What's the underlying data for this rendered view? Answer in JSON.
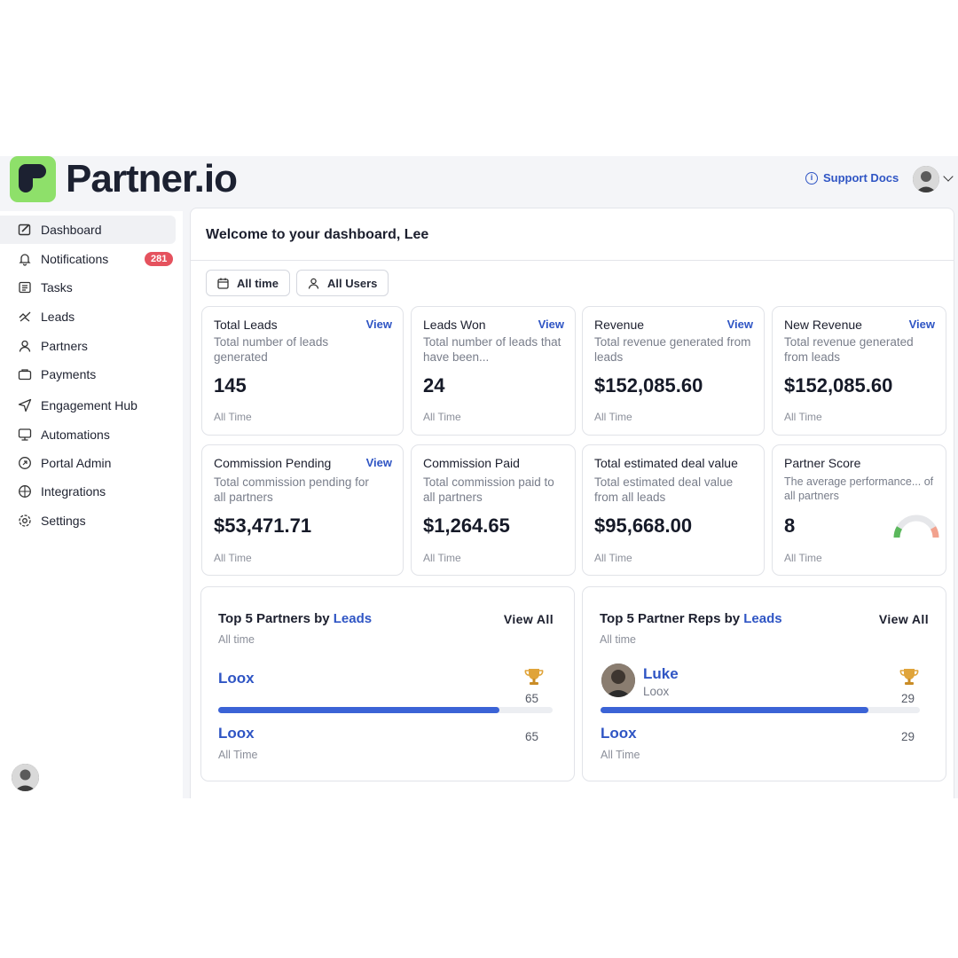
{
  "brand": {
    "name": "Partner.io",
    "accent": "#8ee06a"
  },
  "header": {
    "support_label": "Support Docs"
  },
  "sidebar": {
    "items": [
      {
        "label": "Dashboard",
        "icon": "dashboard-icon",
        "active": true
      },
      {
        "label": "Notifications",
        "icon": "bell-icon",
        "badge": "281"
      },
      {
        "label": "Tasks",
        "icon": "tasks-icon"
      },
      {
        "label": "Leads",
        "icon": "leads-icon"
      },
      {
        "label": "Partners",
        "icon": "partners-icon"
      },
      {
        "label": "Payments",
        "icon": "payments-icon"
      },
      {
        "label": "Engagement Hub",
        "icon": "send-icon"
      },
      {
        "label": "Automations",
        "icon": "automations-icon"
      },
      {
        "label": "Portal Admin",
        "icon": "portal-admin-icon"
      },
      {
        "label": "Integrations",
        "icon": "integrations-icon"
      },
      {
        "label": "Settings",
        "icon": "gear-icon"
      }
    ]
  },
  "main": {
    "welcome": "Welcome to your dashboard, Lee",
    "filters": {
      "time": "All time",
      "users": "All Users"
    },
    "cards": [
      {
        "title": "Total Leads",
        "view": "View",
        "desc": "Total number of leads generated",
        "value": "145",
        "foot": "All Time"
      },
      {
        "title": "Leads Won",
        "view": "View",
        "desc": "Total number of leads that have been...",
        "value": "24",
        "foot": "All Time"
      },
      {
        "title": "Revenue",
        "view": "View",
        "desc": "Total revenue generated from leads",
        "value": "$152,085.60",
        "foot": "All Time"
      },
      {
        "title": "New Revenue",
        "view": "View",
        "desc": "Total revenue generated from leads",
        "value": "$152,085.60",
        "foot": "All Time"
      },
      {
        "title": "Commission Pending",
        "view": "View",
        "desc": "Total commission pending for all partners",
        "value": "$53,471.71",
        "foot": "All Time"
      },
      {
        "title": "Commission Paid",
        "desc": "Total commission paid to all partners",
        "value": "$1,264.65",
        "foot": "All Time"
      },
      {
        "title": "Total estimated deal value",
        "desc": "Total estimated deal value from all leads",
        "value": "$95,668.00",
        "foot": "All Time"
      },
      {
        "title": "Partner Score",
        "desc": "The average performance... of all partners",
        "value": "8",
        "foot": "All Time"
      }
    ],
    "leaderboards": [
      {
        "title_prefix": "Top 5 Partners by ",
        "title_accent": "Leads",
        "view_all": "View All",
        "subtitle": "All time",
        "top": {
          "name": "Loox",
          "count": "65",
          "progress": 0.84
        },
        "second": {
          "name": "Loox",
          "count": "65",
          "foot": "All Time"
        }
      },
      {
        "title_prefix": "Top 5 Partner Reps by ",
        "title_accent": "Leads",
        "view_all": "View All",
        "subtitle": "All time",
        "top": {
          "name": "Luke",
          "company": "Loox",
          "count": "29",
          "progress": 0.84
        },
        "second": {
          "name": "Loox",
          "count": "29",
          "foot": "All Time"
        }
      }
    ]
  }
}
